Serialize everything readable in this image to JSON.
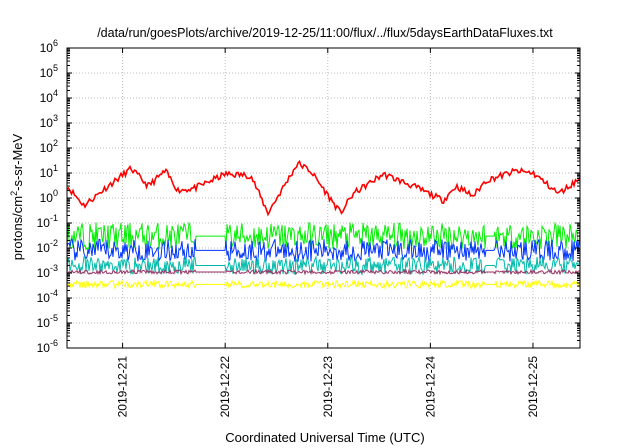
{
  "chart_data": {
    "type": "line",
    "title": "/data/run/goesPlots/archive/2019-12-25/11:00/flux/../flux/5daysEarthDataFluxes.txt",
    "xlabel": "Coordinated Universal Time (UTC)",
    "ylabel": {
      "base": "protons/cm",
      "sup": "2",
      "rest": "-s-sr-MeV"
    },
    "y_scale": "log",
    "ylim_exponents": [
      -6,
      6
    ],
    "y_ticks": [
      {
        "base": "10",
        "exp": "-6"
      },
      {
        "base": "10",
        "exp": "-5"
      },
      {
        "base": "10",
        "exp": "-4"
      },
      {
        "base": "10",
        "exp": "-3"
      },
      {
        "base": "10",
        "exp": "-2"
      },
      {
        "base": "10",
        "exp": "-1"
      },
      {
        "base": "10",
        "exp": "0"
      },
      {
        "base": "10",
        "exp": "1"
      },
      {
        "base": "10",
        "exp": "2"
      },
      {
        "base": "10",
        "exp": "3"
      },
      {
        "base": "10",
        "exp": "4"
      },
      {
        "base": "10",
        "exp": "5"
      },
      {
        "base": "10",
        "exp": "6"
      }
    ],
    "x_range_days": [
      "2019-12-20T11:00",
      "2019-12-25T11:00"
    ],
    "x_ticks": [
      "2019-12-21",
      "2019-12-22",
      "2019-12-23",
      "2019-12-24",
      "2019-12-25"
    ],
    "grid": true,
    "legend": "none",
    "series": [
      {
        "color": "#ff0000",
        "x": [
          "2019-12-20T11:00",
          "2019-12-20T15:00",
          "2019-12-20T20:00",
          "2019-12-21T02:00",
          "2019-12-21T06:00",
          "2019-12-21T10:00",
          "2019-12-21T13:00",
          "2019-12-21T17:00",
          "2019-12-22T00:00",
          "2019-12-22T06:00",
          "2019-12-22T10:00",
          "2019-12-22T17:00",
          "2019-12-22T20:00",
          "2019-12-23T03:00",
          "2019-12-23T06:00",
          "2019-12-23T13:00",
          "2019-12-23T20:00",
          "2019-12-24T03:00",
          "2019-12-24T06:00",
          "2019-12-24T10:00",
          "2019-12-24T13:00",
          "2019-12-24T20:00",
          "2019-12-25T00:00",
          "2019-12-25T06:00",
          "2019-12-25T11:00"
        ],
        "y": [
          3,
          0.5,
          2.5,
          15,
          3,
          12,
          2,
          2.5,
          9,
          8,
          0.25,
          25,
          12,
          0.25,
          1.5,
          9,
          3,
          0.8,
          3,
          1.2,
          5,
          12,
          10,
          1.5,
          6
        ]
      },
      {
        "color": "#00ee00",
        "x": [
          "2019-12-20T11:00",
          "2019-12-21T11:00",
          "2019-12-22T11:00",
          "2019-12-23T11:00",
          "2019-12-24T11:00",
          "2019-12-25T11:00"
        ],
        "y": [
          0.03,
          0.03,
          0.03,
          0.03,
          0.03,
          0.03
        ]
      },
      {
        "color": "#0033ff",
        "x": [
          "2019-12-20T11:00",
          "2019-12-21T11:00",
          "2019-12-22T11:00",
          "2019-12-23T11:00",
          "2019-12-24T11:00",
          "2019-12-25T11:00"
        ],
        "y": [
          0.008,
          0.008,
          0.008,
          0.008,
          0.008,
          0.008
        ]
      },
      {
        "color": "#00bbaa",
        "x": [
          "2019-12-20T11:00",
          "2019-12-21T11:00",
          "2019-12-22T11:00",
          "2019-12-23T11:00",
          "2019-12-24T11:00",
          "2019-12-25T11:00"
        ],
        "y": [
          0.002,
          0.002,
          0.002,
          0.002,
          0.002,
          0.002
        ]
      },
      {
        "color": "#993366",
        "x": [
          "2019-12-20T11:00",
          "2019-12-21T11:00",
          "2019-12-22T11:00",
          "2019-12-23T11:00",
          "2019-12-24T11:00",
          "2019-12-25T11:00"
        ],
        "y": [
          0.0011,
          0.0011,
          0.0011,
          0.0011,
          0.0011,
          0.0011
        ]
      },
      {
        "color": "#ffff00",
        "x": [
          "2019-12-20T11:00",
          "2019-12-21T11:00",
          "2019-12-22T11:00",
          "2019-12-23T11:00",
          "2019-12-24T11:00",
          "2019-12-25T11:00"
        ],
        "y": [
          0.00035,
          0.00035,
          0.00035,
          0.00035,
          0.00035,
          0.00035
        ]
      }
    ]
  }
}
